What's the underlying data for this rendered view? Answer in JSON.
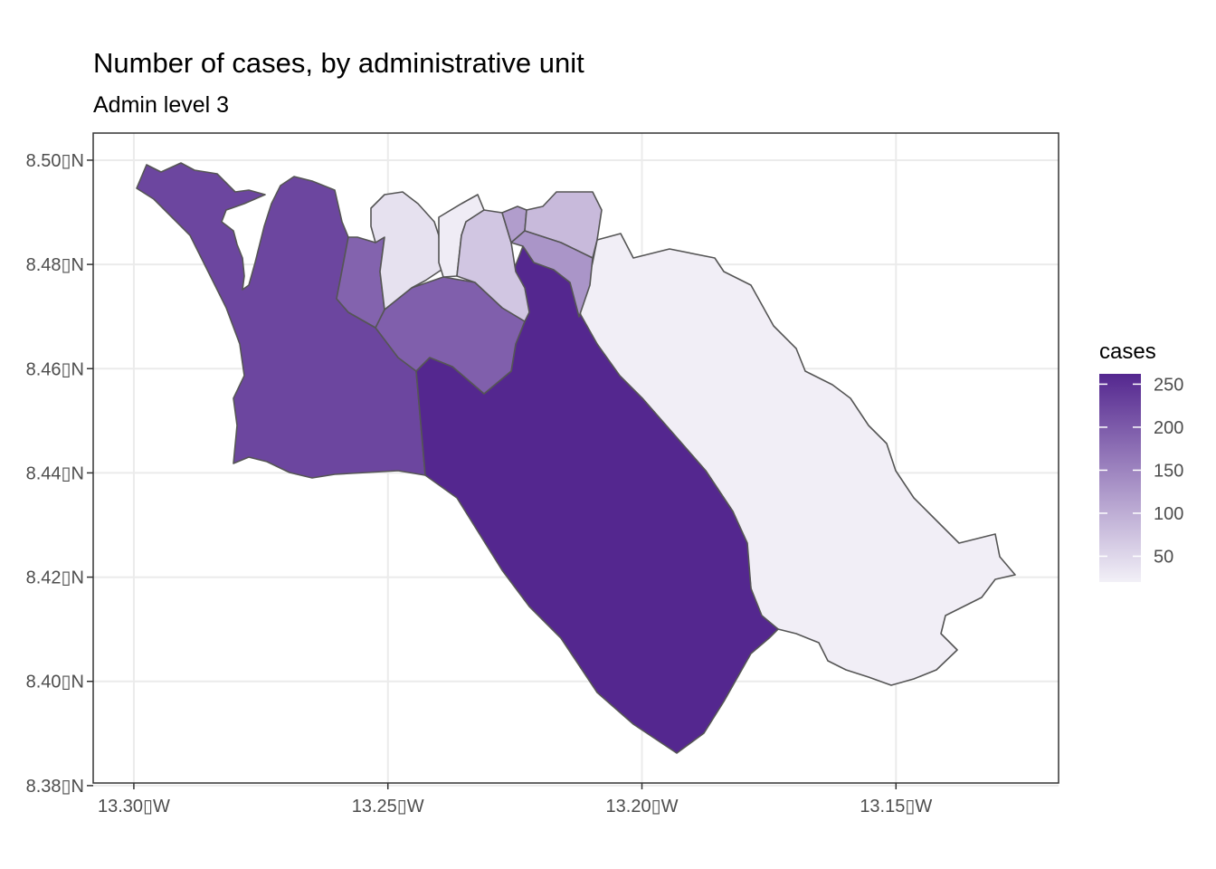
{
  "title": "Number of cases, by administrative unit",
  "subtitle": "Admin level 3",
  "chart_data": {
    "type": "choropleth",
    "title": "Number of cases, by administrative unit",
    "subtitle": "Admin level 3",
    "x_axis": {
      "ticks": [
        {
          "value": -13.3,
          "label": "13.30▯W"
        },
        {
          "value": -13.25,
          "label": "13.25▯W"
        },
        {
          "value": -13.2,
          "label": "13.20▯W"
        },
        {
          "value": -13.15,
          "label": "13.15▯W"
        }
      ],
      "range": [
        -13.308,
        -13.118
      ]
    },
    "y_axis": {
      "ticks": [
        {
          "value": 8.5,
          "label": "8.50▯N"
        },
        {
          "value": 8.48,
          "label": "8.48▯N"
        },
        {
          "value": 8.46,
          "label": "8.46▯N"
        },
        {
          "value": 8.44,
          "label": "8.44▯N"
        },
        {
          "value": 8.42,
          "label": "8.42▯N"
        },
        {
          "value": 8.4,
          "label": "8.40▯N"
        },
        {
          "value": 8.38,
          "label": "8.38▯N"
        }
      ],
      "range": [
        8.3805,
        8.5052
      ]
    },
    "grid": true,
    "legend": {
      "title": "cases",
      "position": "right",
      "range": [
        20,
        262
      ],
      "breaks": [
        {
          "value": 50,
          "label": "50"
        },
        {
          "value": 100,
          "label": "100"
        },
        {
          "value": 150,
          "label": "150"
        },
        {
          "value": 200,
          "label": "200"
        },
        {
          "value": 250,
          "label": "250"
        }
      ],
      "color_low": "#f2f0f7",
      "color_high": "#54278f"
    },
    "regions": [
      {
        "id": "west",
        "cases": 225
      },
      {
        "id": "southeast",
        "cases": 262
      },
      {
        "id": "east",
        "cases": 22
      },
      {
        "id": "central",
        "cases": 195
      },
      {
        "id": "central-north",
        "cases": 190
      },
      {
        "id": "north-1",
        "cases": 38
      },
      {
        "id": "north-2",
        "cases": 25
      },
      {
        "id": "north-3",
        "cases": 70
      },
      {
        "id": "north-4",
        "cases": 120
      },
      {
        "id": "north-5",
        "cases": 85
      },
      {
        "id": "north-6",
        "cases": 130
      }
    ]
  }
}
